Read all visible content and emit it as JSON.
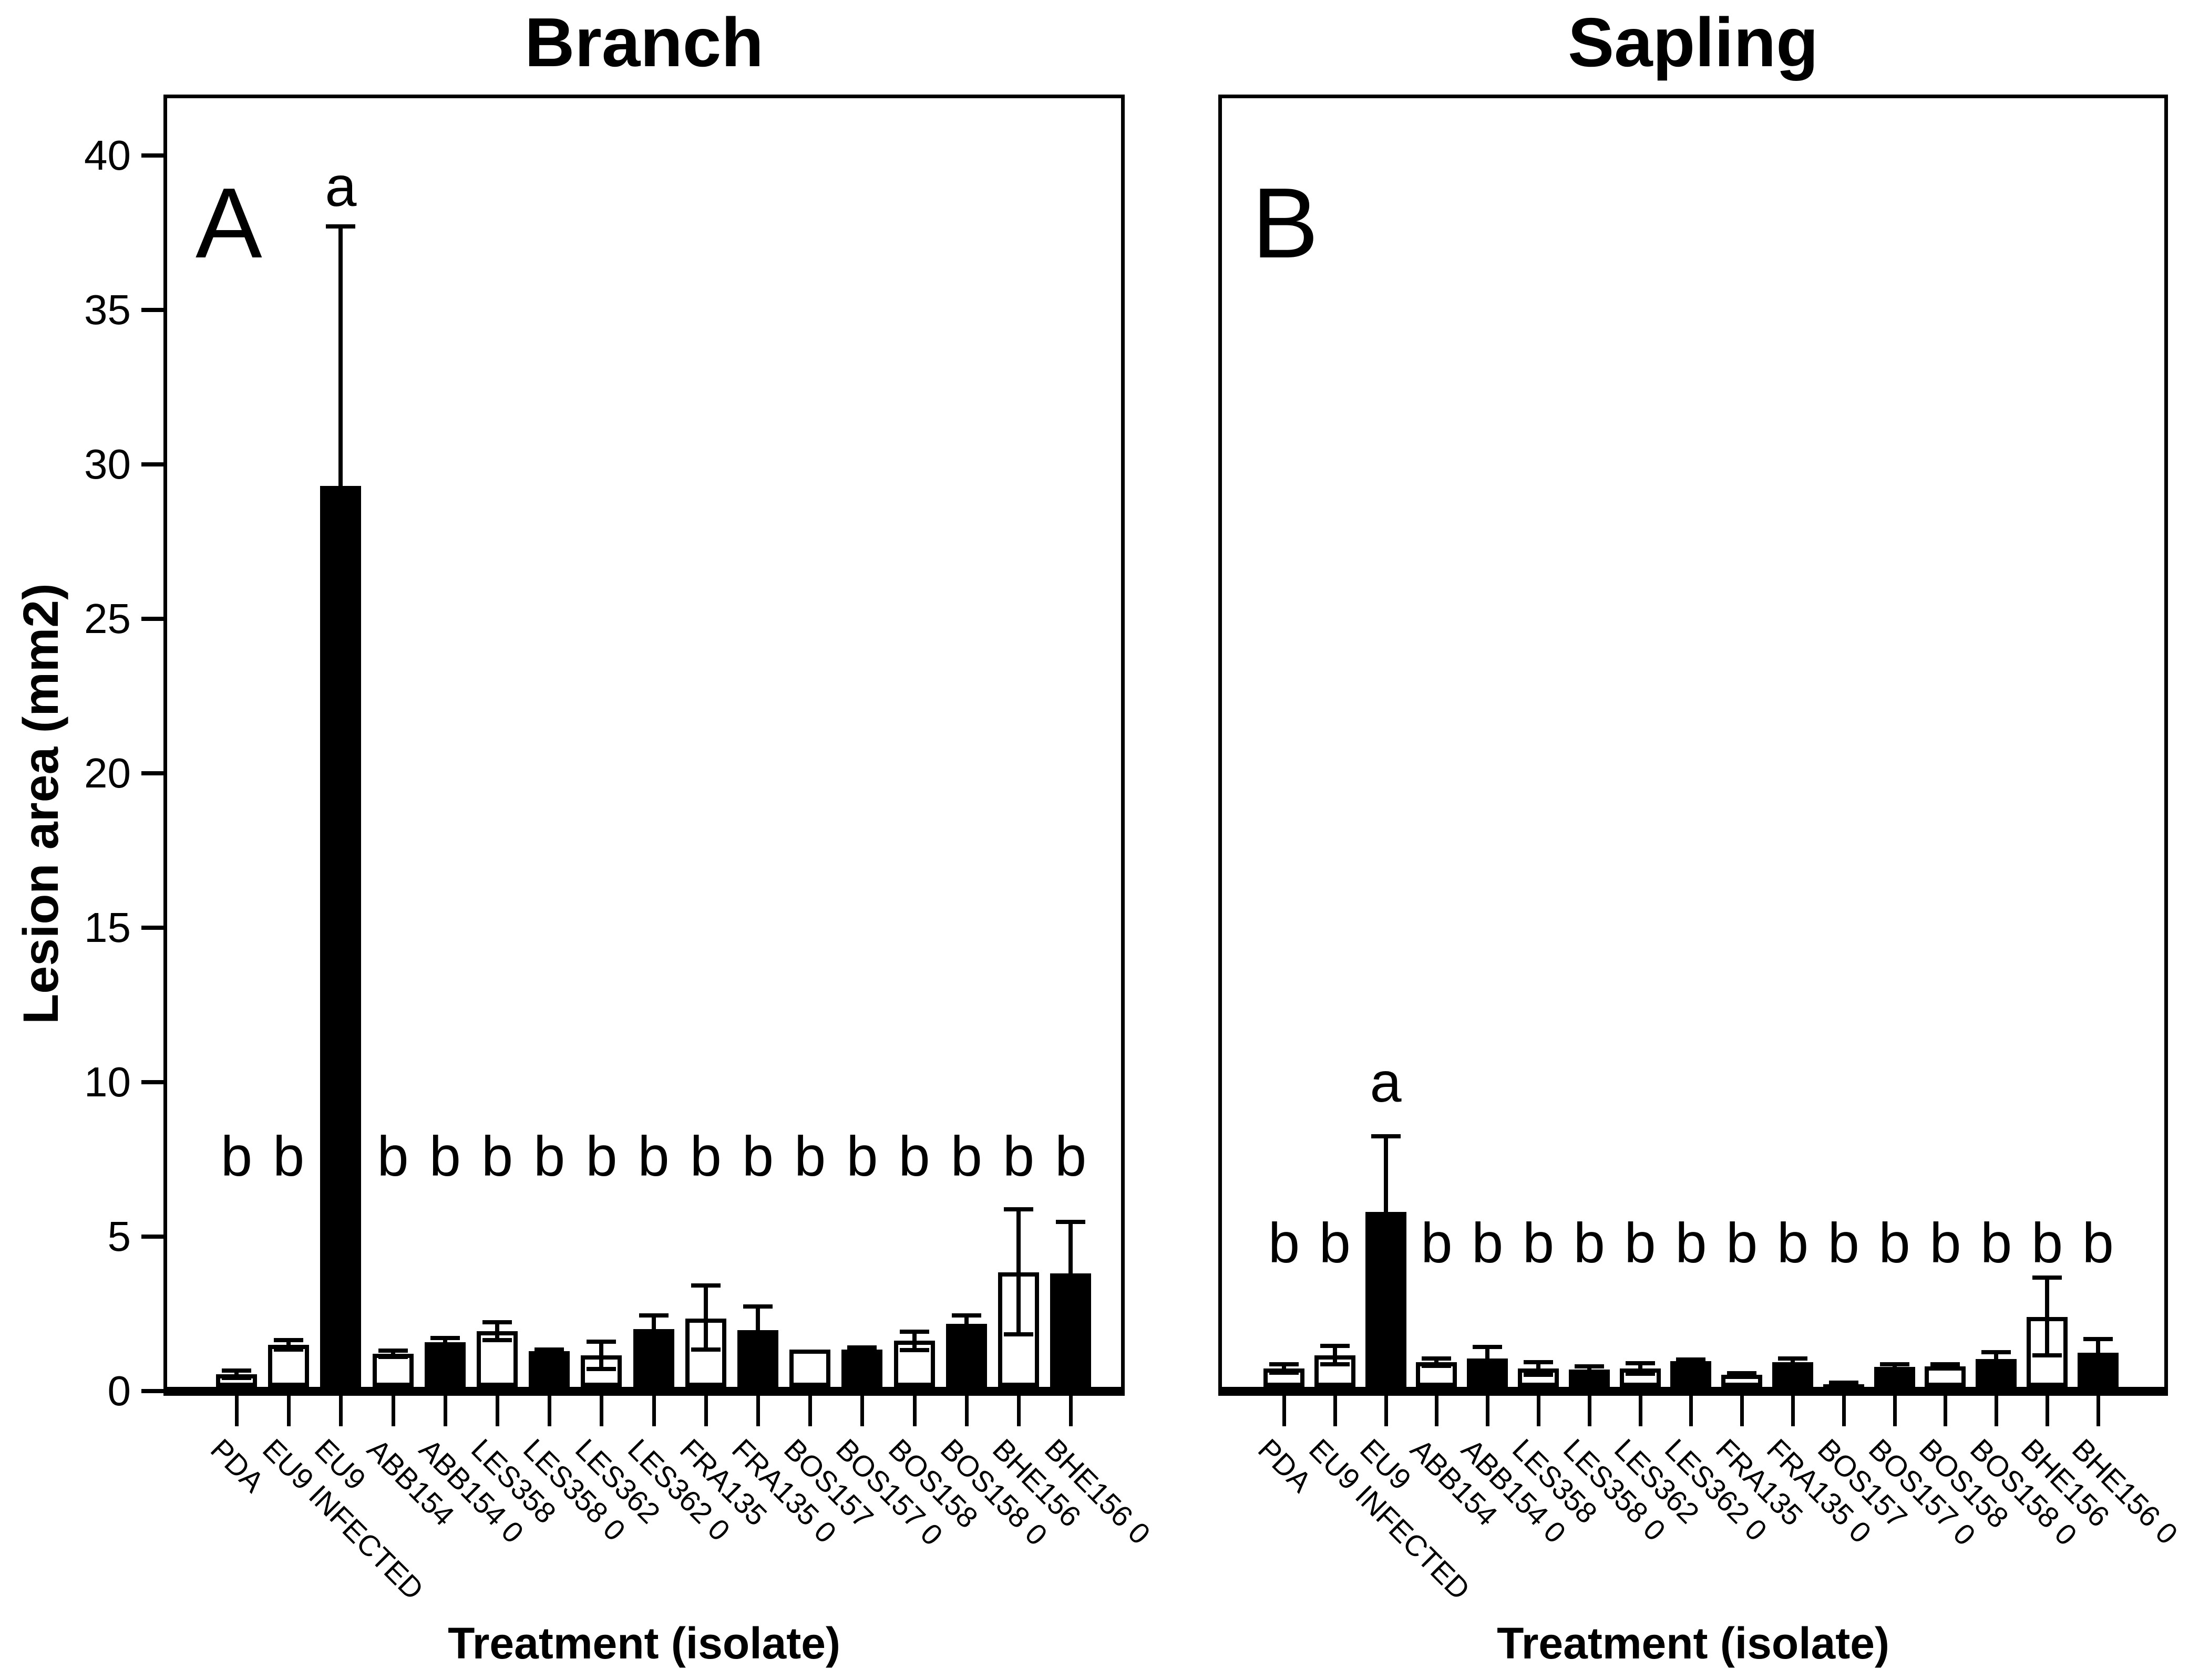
{
  "figure": {
    "y_axis_label": "Lesion area (mm2)",
    "background_color": "#ffffff",
    "ink_color": "#000000"
  },
  "chart_data": [
    {
      "type": "bar",
      "panel_letter": "A",
      "title": "Branch",
      "xlabel": "Treatment (isolate)",
      "ylabel": "Lesion area (mm2)",
      "ylim": [
        0,
        42
      ],
      "y_ticks": [
        0,
        5,
        10,
        15,
        20,
        25,
        30,
        35,
        40
      ],
      "grid": "off",
      "legend": "none",
      "categories": [
        "PDA",
        "EU9 INFECTED",
        "EU9",
        "ABB154",
        "ABB154 0",
        "LES358",
        "LES358 0",
        "LES362",
        "LES362 0",
        "FRA135",
        "FRA135 0",
        "BOS157",
        "BOS157 0",
        "BOS158",
        "BOS158 0",
        "BHE156",
        "BHE156 0"
      ],
      "values": [
        0.55,
        1.5,
        29.3,
        1.21,
        1.59,
        1.94,
        1.29,
        1.16,
        2.0,
        2.34,
        1.97,
        1.35,
        1.35,
        1.63,
        2.17,
        3.84,
        3.81
      ],
      "error_plus": [
        0.12,
        0.15,
        8.4,
        0.1,
        0.12,
        0.29,
        0.05,
        0.44,
        0.45,
        1.08,
        0.76,
        0,
        0.07,
        0.3,
        0.28,
        2.04,
        1.67
      ],
      "error_minus": [
        0.12,
        0.15,
        0,
        0.1,
        0,
        0.29,
        0,
        0.44,
        0,
        0.99,
        0,
        0,
        0,
        0.3,
        0,
        2.01,
        0
      ],
      "fills": [
        "white",
        "white",
        "black",
        "white",
        "black",
        "white",
        "black",
        "white",
        "black",
        "white",
        "black",
        "white",
        "black",
        "white",
        "black",
        "white",
        "black"
      ],
      "sig_letters": [
        "b",
        "b",
        "a",
        "b",
        "b",
        "b",
        "b",
        "b",
        "b",
        "b",
        "b",
        "b",
        "b",
        "b",
        "b",
        "b",
        "b"
      ],
      "letter_row_value": 7.6,
      "a_letter_value": 39.0
    },
    {
      "type": "bar",
      "panel_letter": "B",
      "title": "Sapling",
      "xlabel": "Treatment (isolate)",
      "ylabel": "Lesion area (mm2)",
      "ylim": [
        0,
        42
      ],
      "y_ticks": [],
      "grid": "off",
      "legend": "none",
      "categories": [
        "PDA",
        "EU9 INFECTED",
        "EU9",
        "ABB154",
        "ABB154 0",
        "LES358",
        "LES358 0",
        "LES362",
        "LES362 0",
        "FRA135",
        "FRA135 0",
        "BOS157",
        "BOS157 0",
        "BOS158",
        "BOS158 0",
        "BHE156",
        "BHE156 0"
      ],
      "values": [
        0.73,
        1.16,
        5.8,
        0.94,
        1.06,
        0.73,
        0.7,
        0.73,
        0.97,
        0.52,
        0.93,
        0.22,
        0.79,
        0.8,
        1.04,
        2.4,
        1.24
      ],
      "error_plus": [
        0.13,
        0.3,
        2.45,
        0.12,
        0.37,
        0.2,
        0.1,
        0.17,
        0.05,
        0.05,
        0.13,
        0.05,
        0.08,
        0.07,
        0.22,
        1.28,
        0.44
      ],
      "error_minus": [
        0.13,
        0.3,
        0,
        0.12,
        0,
        0.2,
        0,
        0.17,
        0,
        0.05,
        0,
        0.05,
        0,
        0.07,
        0,
        1.25,
        0
      ],
      "fills": [
        "white",
        "white",
        "black",
        "white",
        "black",
        "white",
        "black",
        "white",
        "black",
        "white",
        "black",
        "white",
        "black",
        "white",
        "black",
        "white",
        "black"
      ],
      "sig_letters": [
        "b",
        "b",
        "a",
        "b",
        "b",
        "b",
        "b",
        "b",
        "b",
        "b",
        "b",
        "b",
        "b",
        "b",
        "b",
        "b",
        "b"
      ],
      "letter_row_value": 4.8,
      "a_letter_value": 10.0
    }
  ]
}
